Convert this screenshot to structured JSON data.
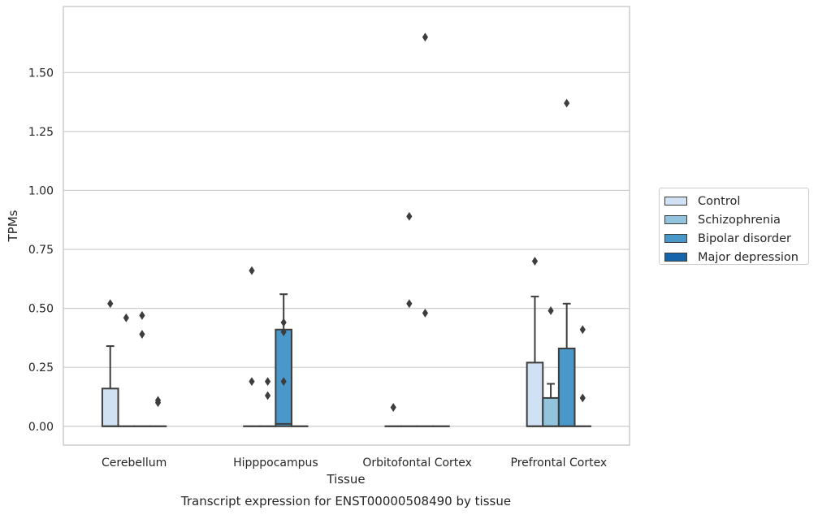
{
  "chart_data": {
    "type": "box",
    "title": "Transcript expression for ENST00000508490 by tissue",
    "xlabel": "Tissue",
    "ylabel": "TPMs",
    "ylim": [
      -0.08,
      1.78
    ],
    "yticks": [
      0.0,
      0.25,
      0.5,
      0.75,
      1.0,
      1.25,
      1.5
    ],
    "ytick_labels": [
      "0.00",
      "0.25",
      "0.50",
      "0.75",
      "1.00",
      "1.25",
      "1.50"
    ],
    "grid": true,
    "legend_position": "right",
    "categories": [
      "Cerebellum",
      "Hipppocampus",
      "Orbitofontal Cortex",
      "Prefrontal Cortex"
    ],
    "series": [
      {
        "name": "Control",
        "color": "#cfe1f2",
        "boxes": [
          {
            "q1": 0.0,
            "median": 0.0,
            "q3": 0.16,
            "whisker_low": 0.0,
            "whisker_high": 0.34,
            "outliers": [
              0.52
            ]
          },
          {
            "q1": 0.0,
            "median": 0.0,
            "q3": 0.0,
            "whisker_low": 0.0,
            "whisker_high": 0.0,
            "outliers": [
              0.66,
              0.19
            ]
          },
          {
            "q1": 0.0,
            "median": 0.0,
            "q3": 0.0,
            "whisker_low": 0.0,
            "whisker_high": 0.0,
            "outliers": [
              0.08
            ]
          },
          {
            "q1": 0.0,
            "median": 0.0,
            "q3": 0.27,
            "whisker_low": 0.0,
            "whisker_high": 0.55,
            "outliers": [
              0.7
            ]
          }
        ]
      },
      {
        "name": "Schizophrenia",
        "color": "#93c4de",
        "boxes": [
          {
            "q1": 0.0,
            "median": 0.0,
            "q3": 0.0,
            "whisker_low": 0.0,
            "whisker_high": 0.0,
            "outliers": [
              0.46
            ]
          },
          {
            "q1": 0.0,
            "median": 0.0,
            "q3": 0.0,
            "whisker_low": 0.0,
            "whisker_high": 0.0,
            "outliers": [
              0.19,
              0.13
            ]
          },
          {
            "q1": 0.0,
            "median": 0.0,
            "q3": 0.0,
            "whisker_low": 0.0,
            "whisker_high": 0.0,
            "outliers": [
              0.89,
              0.52
            ]
          },
          {
            "q1": 0.0,
            "median": 0.0,
            "q3": 0.12,
            "whisker_low": 0.0,
            "whisker_high": 0.18,
            "outliers": [
              0.49
            ]
          }
        ]
      },
      {
        "name": "Bipolar disorder",
        "color": "#4a98c9",
        "boxes": [
          {
            "q1": 0.0,
            "median": 0.0,
            "q3": 0.0,
            "whisker_low": 0.0,
            "whisker_high": 0.0,
            "outliers": [
              0.47,
              0.39
            ]
          },
          {
            "q1": 0.0,
            "median": 0.01,
            "q3": 0.41,
            "whisker_low": 0.0,
            "whisker_high": 0.56,
            "outliers": [
              0.44,
              0.4,
              0.19
            ]
          },
          {
            "q1": 0.0,
            "median": 0.0,
            "q3": 0.0,
            "whisker_low": 0.0,
            "whisker_high": 0.0,
            "outliers": [
              1.65,
              0.48
            ]
          },
          {
            "q1": 0.0,
            "median": 0.0,
            "q3": 0.33,
            "whisker_low": 0.0,
            "whisker_high": 0.52,
            "outliers": [
              1.37
            ]
          }
        ]
      },
      {
        "name": "Major depression",
        "color": "#1764ab",
        "boxes": [
          {
            "q1": 0.0,
            "median": 0.0,
            "q3": 0.0,
            "whisker_low": 0.0,
            "whisker_high": 0.0,
            "outliers": [
              0.11,
              0.1
            ]
          },
          {
            "q1": 0.0,
            "median": 0.0,
            "q3": 0.0,
            "whisker_low": 0.0,
            "whisker_high": 0.0,
            "outliers": []
          },
          {
            "q1": 0.0,
            "median": 0.0,
            "q3": 0.0,
            "whisker_low": 0.0,
            "whisker_high": 0.0,
            "outliers": []
          },
          {
            "q1": 0.0,
            "median": 0.0,
            "q3": 0.0,
            "whisker_low": 0.0,
            "whisker_high": 0.0,
            "outliers": [
              0.41,
              0.12
            ]
          }
        ]
      }
    ]
  }
}
